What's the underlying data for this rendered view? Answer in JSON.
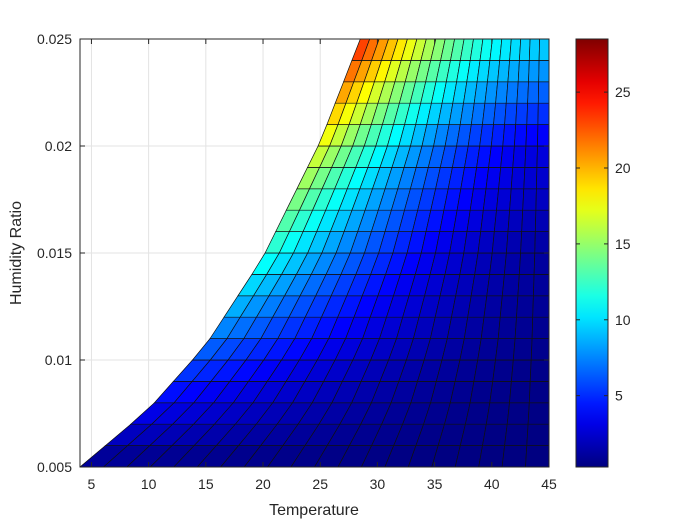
{
  "chart_data": {
    "type": "heatmap",
    "xlabel": "Temperature",
    "ylabel": "Humidity Ratio",
    "xlim": [
      4,
      45
    ],
    "ylim": [
      0.005,
      0.025
    ],
    "xticks": [
      "5",
      "10",
      "15",
      "20",
      "25",
      "30",
      "35",
      "40",
      "45"
    ],
    "xtick_values": [
      5,
      10,
      15,
      20,
      25,
      30,
      35,
      40,
      45
    ],
    "yticks": [
      "0.005",
      "0.01",
      "0.015",
      "0.02",
      "0.025"
    ],
    "ytick_values": [
      0.005,
      0.01,
      0.015,
      0.02,
      0.025
    ],
    "grid": true,
    "colormap": "jet",
    "colorbar": {
      "range": [
        0.3,
        28.5
      ],
      "ticks": [
        "5",
        "10",
        "15",
        "20",
        "25"
      ],
      "tick_values": [
        5,
        10,
        15,
        20,
        25
      ]
    },
    "saturation_boundary": {
      "x": [
        4,
        10,
        15,
        20,
        25,
        28.5
      ],
      "y": [
        0.005,
        0.0077,
        0.0107,
        0.0148,
        0.0202,
        0.025
      ]
    },
    "surface_value_at_boundary": {
      "y": [
        0.005,
        0.01,
        0.015,
        0.02,
        0.025
      ],
      "value": [
        0.5,
        6.0,
        12.0,
        17.5,
        24.5
      ]
    },
    "surface_value_at_xmax": {
      "y": [
        0.005,
        0.01,
        0.015,
        0.02,
        0.025
      ],
      "value": [
        0.3,
        0.6,
        1.2,
        3.0,
        10.0
      ]
    }
  }
}
